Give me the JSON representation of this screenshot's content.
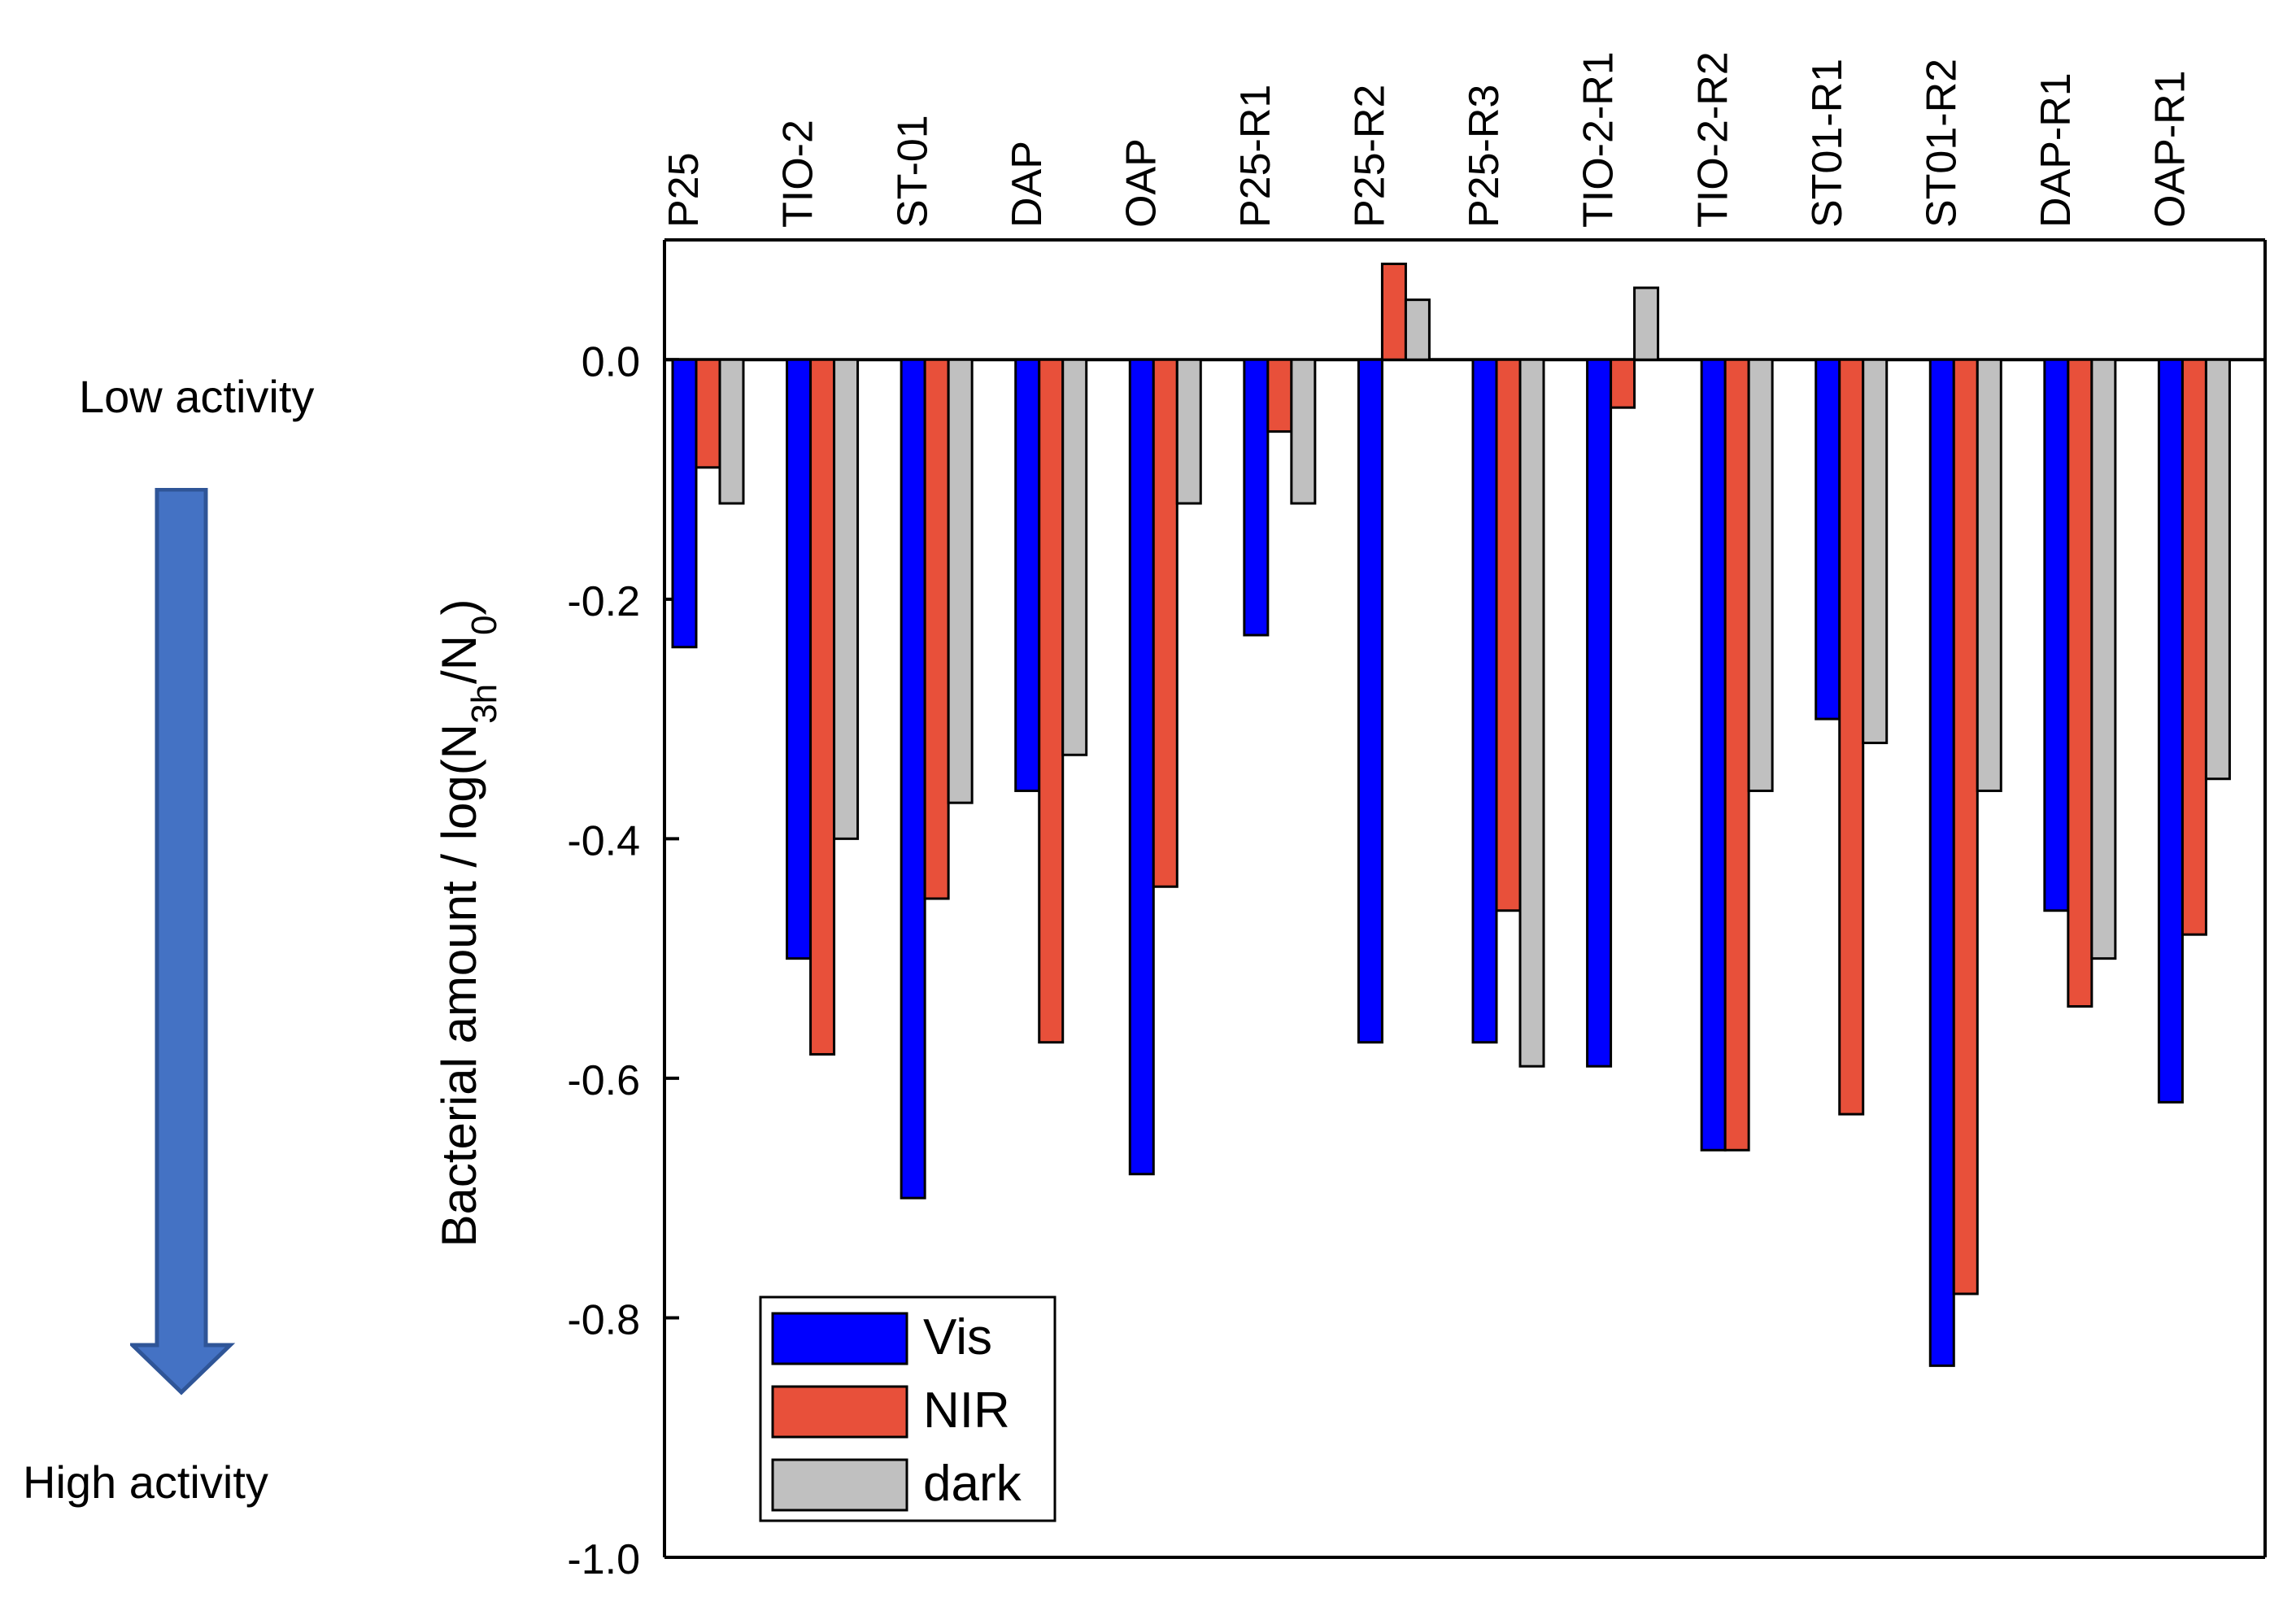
{
  "side_labels": {
    "low": "Low activity",
    "high": "High activity"
  },
  "arrow": {
    "color": "#4472C4",
    "edge_color": "#2F5597",
    "icon": "down-arrow-icon"
  },
  "chart_data": {
    "type": "bar",
    "title": "",
    "xlabel": "",
    "ylabel_parts": [
      "Bacterial amount / log(N",
      "3h",
      "/N",
      "0",
      ")"
    ],
    "ylim": [
      -1.0,
      0.1
    ],
    "yticks": [
      0.0,
      -0.2,
      -0.4,
      -0.6,
      -0.8,
      -1.0
    ],
    "ytick_labels": [
      "0.0",
      "-0.2",
      "-0.4",
      "-0.6",
      "-0.8",
      "-1.0"
    ],
    "categories": [
      "P25",
      "TIO-2",
      "ST-01",
      "DAP",
      "OAP",
      "P25-R1",
      "P25-R2",
      "P25-R3",
      "TIO-2-R1",
      "TIO-2-R2",
      "ST01-R1",
      "ST01-R2",
      "DAP-R1",
      "OAP-R1"
    ],
    "series": [
      {
        "name": "Vis",
        "color": "#0000FF",
        "values": [
          -0.24,
          -0.5,
          -0.7,
          -0.36,
          -0.68,
          -0.23,
          -0.57,
          -0.57,
          -0.59,
          -0.66,
          -0.3,
          -0.84,
          -0.46,
          -0.62
        ]
      },
      {
        "name": "NIR",
        "color": "#E8503A",
        "values": [
          -0.09,
          -0.58,
          -0.45,
          -0.57,
          -0.44,
          -0.06,
          0.08,
          -0.46,
          -0.04,
          -0.66,
          -0.63,
          -0.78,
          -0.54,
          -0.48
        ]
      },
      {
        "name": "dark",
        "color": "#C0C0C0",
        "values": [
          -0.12,
          -0.4,
          -0.37,
          -0.33,
          -0.12,
          -0.12,
          0.05,
          -0.59,
          0.06,
          -0.36,
          -0.32,
          -0.36,
          -0.5,
          -0.35
        ]
      }
    ],
    "legend_position": "bottom-left",
    "grid": false
  }
}
